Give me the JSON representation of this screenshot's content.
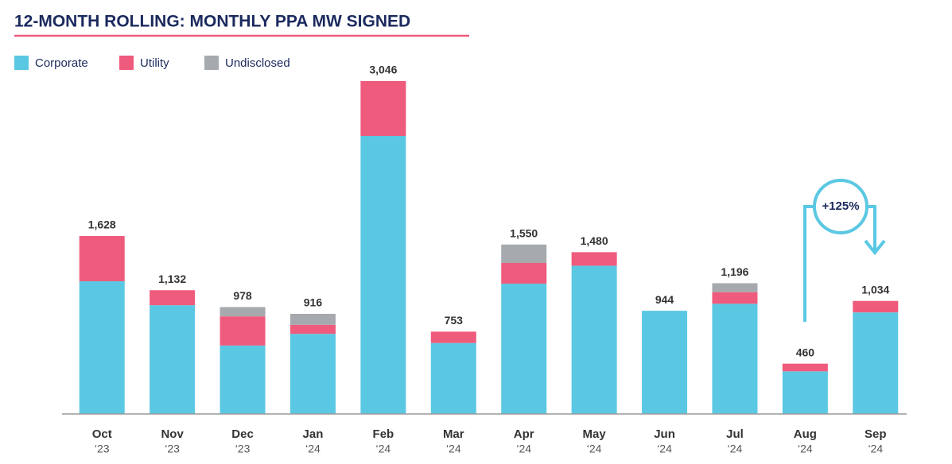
{
  "chart_data": {
    "type": "stacked_bar",
    "title": "12-MONTH ROLLING: MONTHLY PPA MW SIGNED",
    "categories": [
      [
        "Oct",
        "‘23"
      ],
      [
        "Nov",
        "‘23"
      ],
      [
        "Dec",
        "‘23"
      ],
      [
        "Jan",
        "‘24"
      ],
      [
        "Feb",
        "‘24"
      ],
      [
        "Mar",
        "‘24"
      ],
      [
        "Apr",
        "‘24"
      ],
      [
        "May",
        "‘24"
      ],
      [
        "Jun",
        "‘24"
      ],
      [
        "Jul",
        "‘24"
      ],
      [
        "Aug",
        "‘24"
      ],
      [
        "Sep",
        "‘24"
      ]
    ],
    "series": [
      {
        "name": "Corporate",
        "color": "#5bc8e3",
        "values": [
          1214,
          995,
          626,
          733,
          2544,
          649,
          1192,
          1356,
          944,
          1008,
          390,
          929
        ]
      },
      {
        "name": "Utility",
        "color": "#ef5b7d",
        "values": [
          414,
          137,
          267,
          82,
          502,
          104,
          189,
          124,
          0,
          106,
          70,
          105
        ]
      },
      {
        "name": "Undisclosed",
        "color": "#a6a9ad",
        "values": [
          0,
          0,
          85,
          101,
          0,
          0,
          169,
          0,
          0,
          82,
          0,
          0
        ]
      }
    ],
    "total_labels": [
      "1,628",
      "1,132",
      "978",
      "916",
      "3,046",
      "753",
      "1,550",
      "1,480",
      "944",
      "1,196",
      "460",
      "1,034"
    ],
    "annotation": "+125%",
    "ylim": [
      0,
      3300
    ],
    "legend": "top-left"
  }
}
